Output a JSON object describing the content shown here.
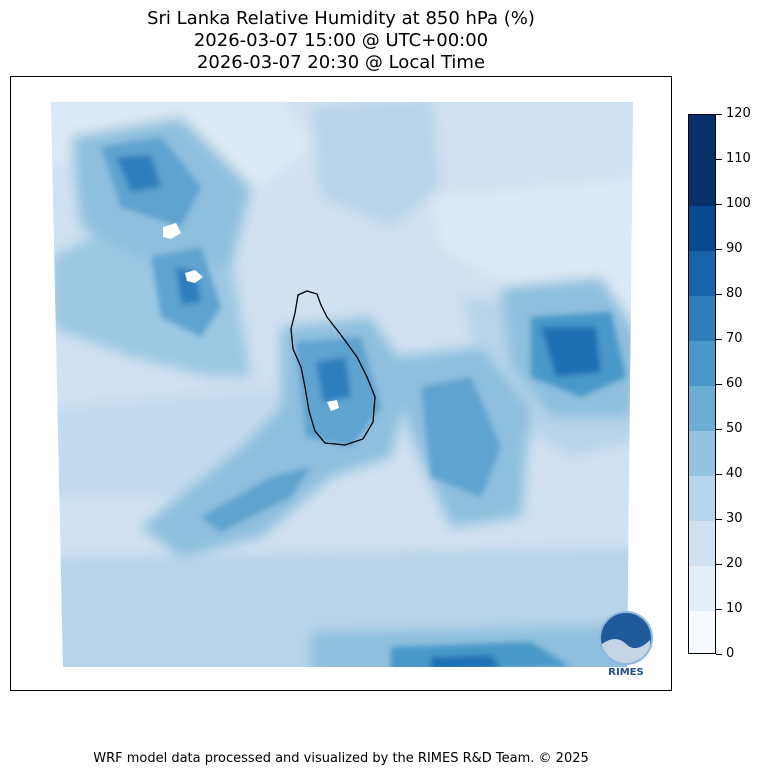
{
  "title": {
    "line1": "Sri Lanka Relative Humidity at 850 hPa (%)",
    "line2": "2026-03-07 15:00 @ UTC+00:00",
    "line3": "2026-03-07 20:30 @ Local Time"
  },
  "colorbar": {
    "min": 0,
    "max": 120,
    "levels": [
      0,
      10,
      20,
      30,
      40,
      50,
      60,
      70,
      80,
      90,
      100,
      110,
      120
    ],
    "colors": [
      "#f7fbff",
      "#e3eef9",
      "#d0e1f2",
      "#b7d4ea",
      "#94c4df",
      "#6aaed6",
      "#4a98c9",
      "#2e7ebc",
      "#1764ab",
      "#084a91",
      "#08306b",
      "#08306b"
    ]
  },
  "logo": {
    "text": "RIMES"
  },
  "footer": "WRF model data processed and visualized by the RIMES R&D Team. © 2025"
}
